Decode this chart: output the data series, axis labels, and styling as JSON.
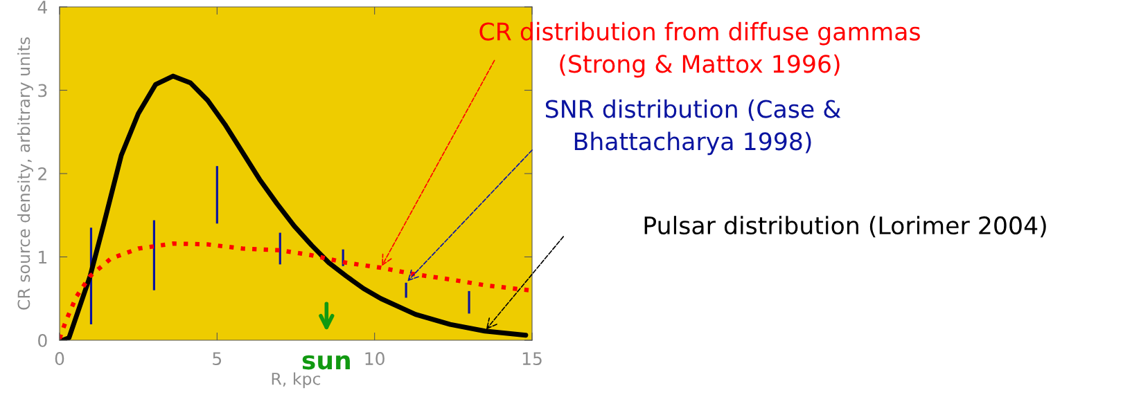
{
  "chart_data": {
    "type": "line",
    "xlabel": "R, kpc",
    "ylabel": "CR source density, arbitrary units",
    "xlim": [
      0,
      15
    ],
    "ylim": [
      0,
      4
    ],
    "xticks": [
      0,
      5,
      10,
      15
    ],
    "yticks": [
      0,
      1,
      2,
      3,
      4
    ],
    "grid": false,
    "legend": false,
    "marker": "none",
    "series": [
      {
        "name": "Pulsar distribution (Lorimer 2004)",
        "line_style": "solid",
        "color": "#000000",
        "x": [
          0.1,
          0.3,
          0.97,
          1.4,
          1.96,
          2.5,
          3.05,
          3.6,
          4.15,
          4.7,
          5.25,
          5.8,
          6.35,
          6.9,
          7.45,
          8.0,
          8.55,
          9.1,
          9.65,
          10.2,
          11.3,
          12.4,
          13.5,
          14.8
        ],
        "values": [
          0.0,
          0.03,
          0.77,
          1.39,
          2.22,
          2.72,
          3.07,
          3.17,
          3.09,
          2.88,
          2.59,
          2.26,
          1.93,
          1.64,
          1.37,
          1.14,
          0.93,
          0.77,
          0.62,
          0.5,
          0.31,
          0.19,
          0.11,
          0.06
        ]
      },
      {
        "name": "CR distribution from diffuse gammas\n(Strong & Mattox 1996)",
        "line_style": "dotted",
        "color": "#ff0000",
        "x": [
          0,
          0.2,
          0.53,
          0.97,
          1.63,
          2.5,
          3.6,
          4.7,
          5.8,
          7.0,
          8.0,
          9.1,
          10.2,
          11.3,
          12.4,
          13.5,
          14.9
        ],
        "values": [
          0.02,
          0.23,
          0.52,
          0.77,
          0.98,
          1.1,
          1.16,
          1.15,
          1.1,
          1.08,
          1.02,
          0.93,
          0.87,
          0.79,
          0.73,
          0.66,
          0.6
        ]
      },
      {
        "name": "SNR distribution (Case &\nBhattacharya 1998)",
        "type": "bar",
        "color": "#0a14a0",
        "x": [
          1,
          3,
          5,
          7,
          9,
          11,
          13
        ],
        "base": [
          0.19,
          0.6,
          1.4,
          0.91,
          0.89,
          0.51,
          0.32
        ],
        "values": [
          1.16,
          0.84,
          0.69,
          0.38,
          0.2,
          0.18,
          0.27
        ]
      }
    ],
    "annotations": [
      "sun"
    ]
  }
}
